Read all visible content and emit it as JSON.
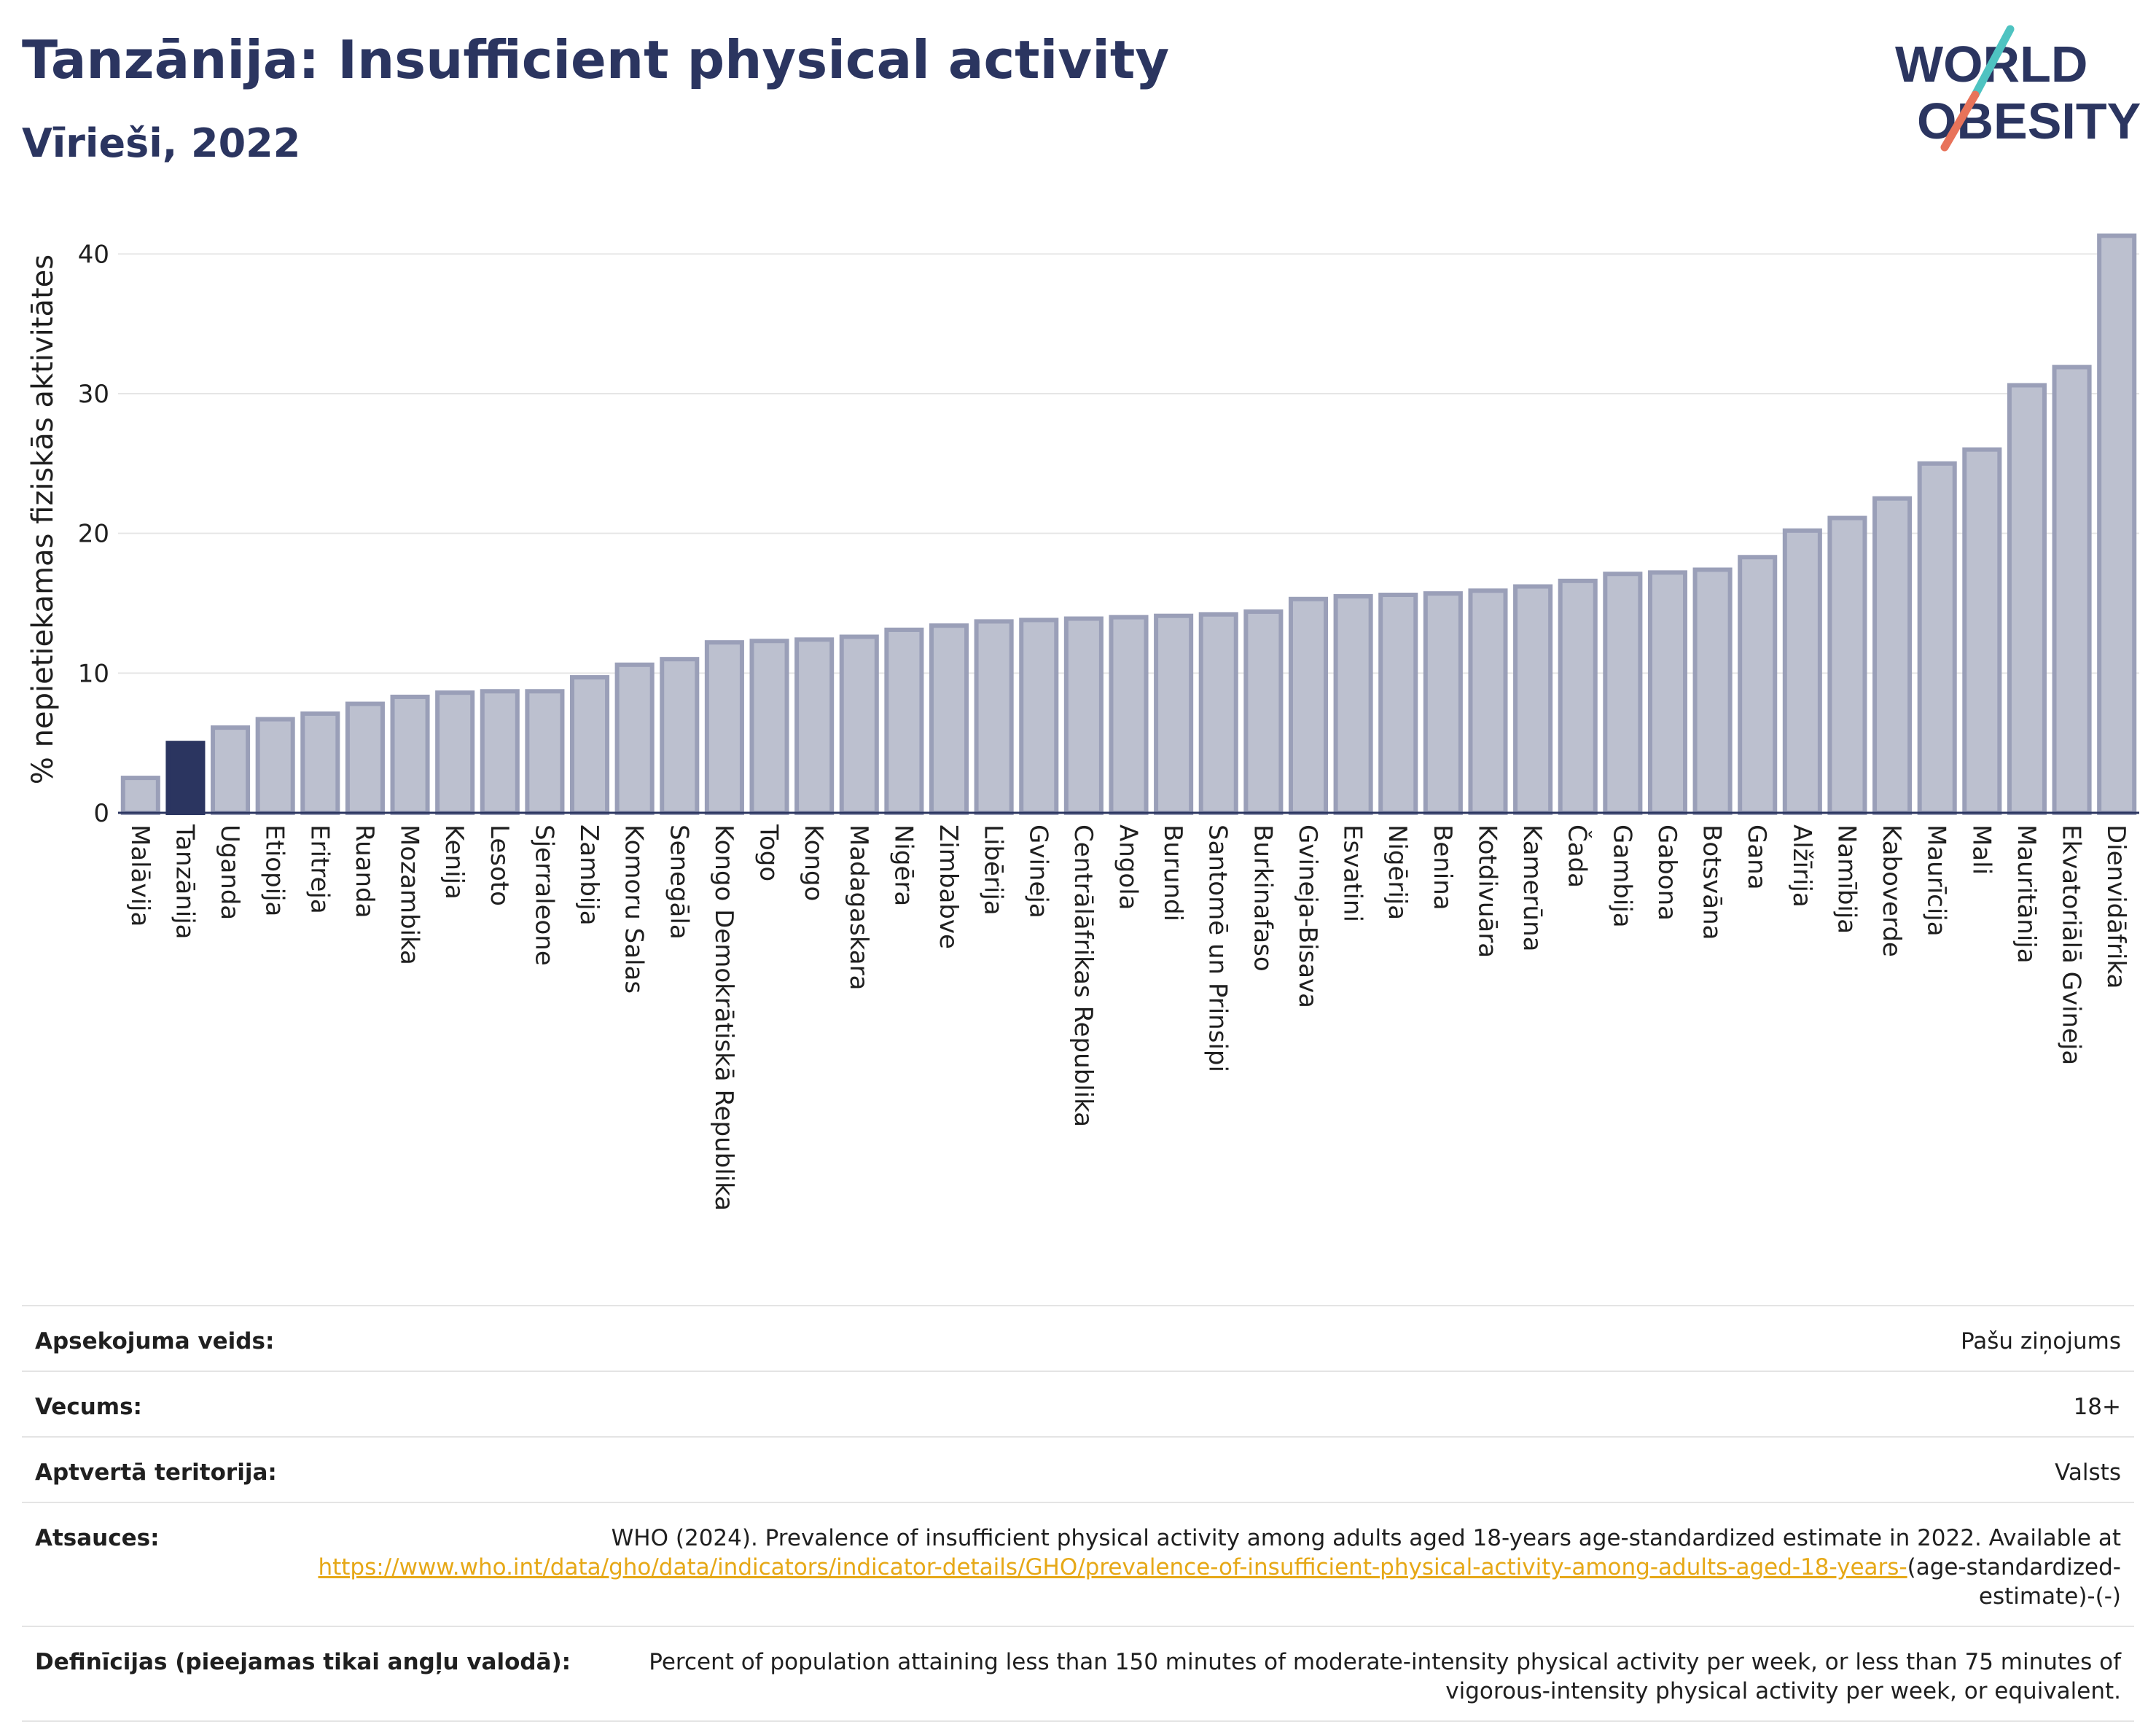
{
  "header": {
    "title": "Tanzānija: Insufficient physical activity",
    "subtitle": "Vīrieši, 2022"
  },
  "logo": {
    "line1": "WORLD",
    "line2": "OBESITY",
    "text_color": "#2b3560",
    "slash_colors": [
      "#4ec3c1",
      "#e8735a"
    ]
  },
  "colors": {
    "highlight_bar": "#2b3560",
    "bar_fill": "#bcc0cf",
    "bar_stroke": "#9a9fb8",
    "link": "#e6a817"
  },
  "chart_data": {
    "type": "bar",
    "title": "Tanzānija: Insufficient physical activity",
    "subtitle": "Vīrieši, 2022",
    "ylabel": "% nepietiekamas fiziskās aktivitātes",
    "xlabel": "",
    "ylim": [
      0,
      42
    ],
    "yticks": [
      0,
      10,
      20,
      30,
      40
    ],
    "grid": true,
    "highlight": "Tanzānija",
    "categories": [
      "Malāvija",
      "Tanzānija",
      "Uganda",
      "Etiopija",
      "Eritreja",
      "Ruanda",
      "Mozambika",
      "Kenija",
      "Lesoto",
      "Sjerraleone",
      "Zambija",
      "Komoru Salas",
      "Senegāla",
      "Kongo Demokrātiskā Republika",
      "Togo",
      "Kongo",
      "Madagaskara",
      "Nigēra",
      "Zimbabve",
      "Libērija",
      "Gvineja",
      "Centrālāfrikas Republika",
      "Angola",
      "Burundi",
      "Santomē un Prinsipi",
      "Burkinafaso",
      "Gvineja-Bisava",
      "Esvatini",
      "Nigērija",
      "Benina",
      "Kotdivuāra",
      "Kamerūna",
      "Čada",
      "Gambija",
      "Gabona",
      "Botsvāna",
      "Gana",
      "Alžīrija",
      "Namībija",
      "Kaboverde",
      "Maurīcija",
      "Mali",
      "Mauritānija",
      "Ekvatoriālā Gvineja",
      "Dienvidāfrika"
    ],
    "values": [
      2.5,
      5.0,
      6.1,
      6.7,
      7.1,
      7.8,
      8.3,
      8.6,
      8.7,
      8.7,
      9.7,
      10.6,
      11.0,
      12.2,
      12.3,
      12.4,
      12.6,
      13.1,
      13.4,
      13.7,
      13.8,
      13.9,
      14.0,
      14.1,
      14.2,
      14.4,
      15.3,
      15.5,
      15.6,
      15.7,
      15.9,
      16.2,
      16.6,
      17.1,
      17.2,
      17.4,
      18.3,
      20.2,
      21.1,
      22.5,
      25.0,
      26.0,
      30.6,
      31.9,
      41.3
    ]
  },
  "meta": {
    "rows": [
      {
        "label": "Apsekojuma veids:",
        "value": "Pašu ziņojums"
      },
      {
        "label": "Vecums:",
        "value": "18+"
      },
      {
        "label": "Aptvertā teritorija:",
        "value": "Valsts"
      },
      {
        "label": "Atsauces:",
        "value": "WHO (2024). Prevalence of insufficient physical activity among adults aged 18-years age-standardized estimate in 2022. Available at ",
        "link": "https://www.who.int/data/gho/data/indicators/indicator-details/GHO/prevalence-of-insufficient-physical-activity-among-adults-aged-18-years-",
        "suffix": "(age-standardized-estimate)-(-)"
      },
      {
        "label": "Definīcijas (pieejamas tikai angļu valodā):",
        "value": "Percent of population attaining less than 150 minutes of moderate-intensity physical activity per week, or less than 75 minutes of vigorous-intensity physical activity per week, or equivalent."
      }
    ]
  }
}
